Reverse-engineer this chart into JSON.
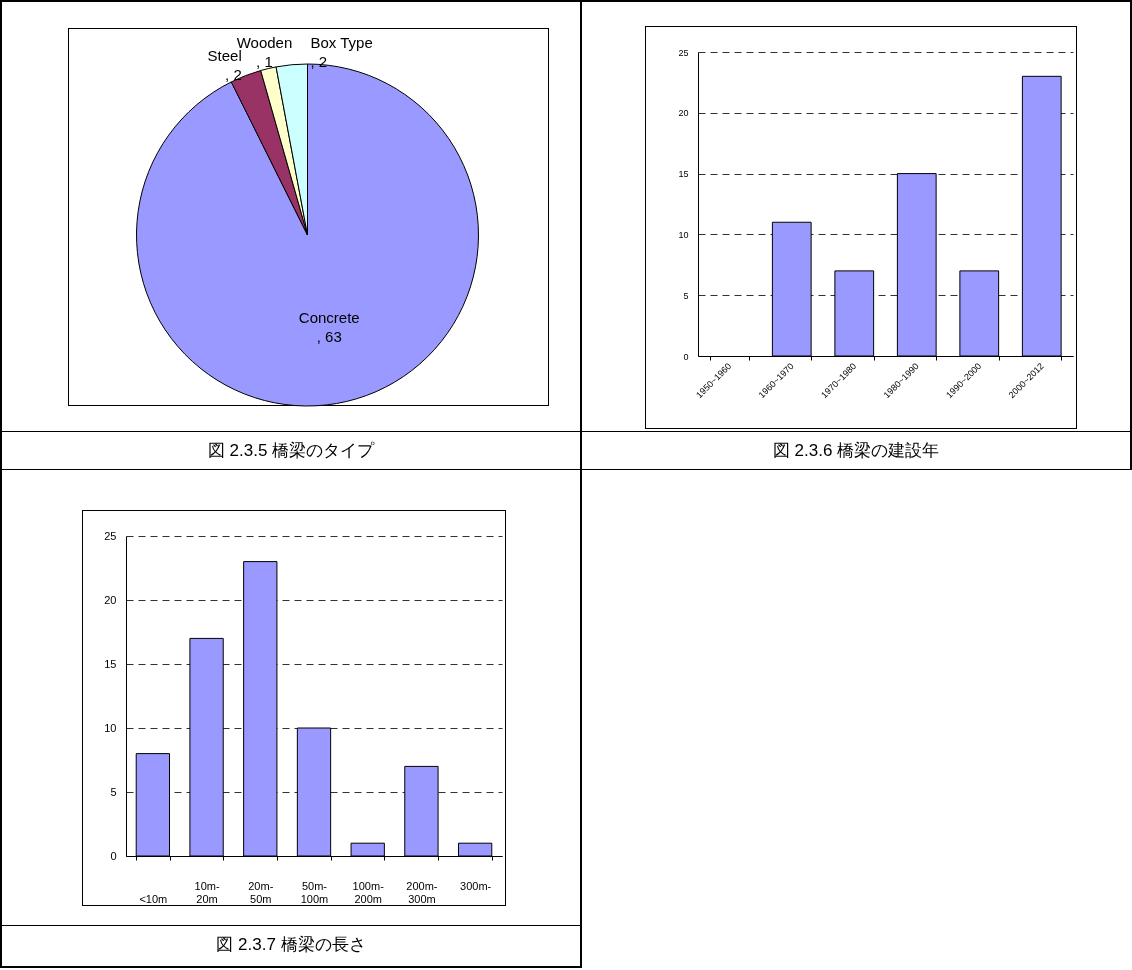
{
  "chart_data": [
    {
      "type": "pie",
      "title": "図 2.3.5 橋梁のタイプ",
      "categories": [
        "Concrete",
        "Steel",
        "Wooden",
        "Box Type"
      ],
      "values": [
        63,
        2,
        1,
        2
      ],
      "colors": [
        "#9999ff",
        "#993366",
        "#ffffcc",
        "#ccffff"
      ],
      "value_labels": [
        ", 63",
        ", 2",
        ", 1",
        ", 2"
      ]
    },
    {
      "type": "bar",
      "title": "図 2.3.6 橋梁の建設年",
      "categories": [
        "1950~1960",
        "1960~1970",
        "1970~1980",
        "1980~1990",
        "1990~2000",
        "2000~2012"
      ],
      "values": [
        0,
        11,
        7,
        15,
        7,
        23
      ],
      "color": "#9999ff",
      "ylim": [
        0,
        25
      ],
      "yticks": [
        0,
        5,
        10,
        15,
        20,
        25
      ],
      "grid": "y"
    },
    {
      "type": "bar",
      "title": "図 2.3.7 橋梁の長さ",
      "categories": [
        "<10m",
        "10m-20m",
        "20m-50m",
        "50m-100m",
        "100m-200m",
        "200m-300m",
        "300m-"
      ],
      "values": [
        8,
        17,
        23,
        10,
        1,
        7,
        1
      ],
      "color": "#9999ff",
      "ylim": [
        0,
        25
      ],
      "yticks": [
        0,
        5,
        10,
        15,
        20,
        25
      ],
      "grid": "y"
    }
  ]
}
